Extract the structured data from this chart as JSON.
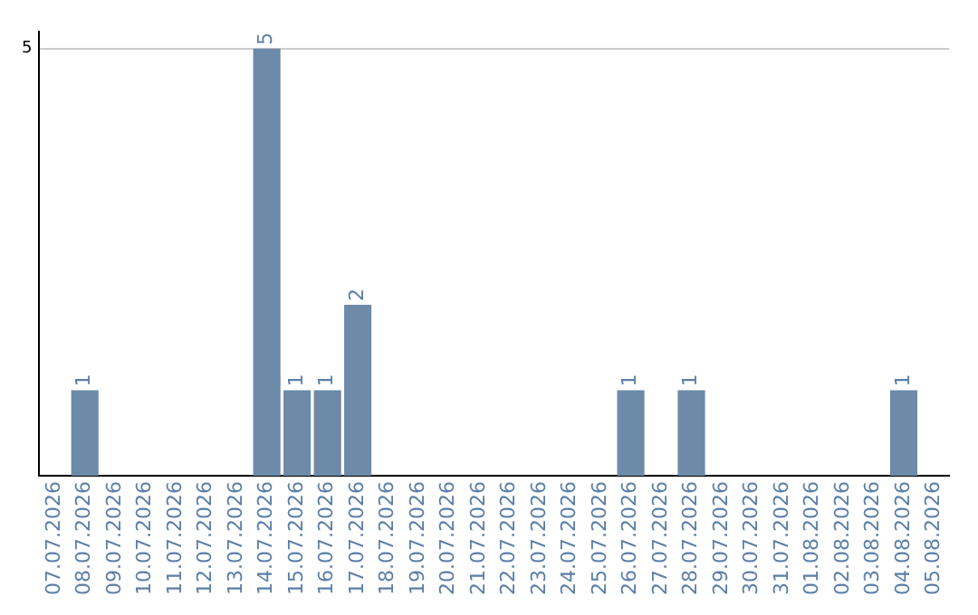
{
  "chart_data": {
    "type": "bar",
    "categories": [
      "07.07.2026",
      "08.07.2026",
      "09.07.2026",
      "10.07.2026",
      "11.07.2026",
      "12.07.2026",
      "13.07.2026",
      "14.07.2026",
      "15.07.2026",
      "16.07.2026",
      "17.07.2026",
      "18.07.2026",
      "19.07.2026",
      "20.07.2026",
      "21.07.2026",
      "22.07.2026",
      "23.07.2026",
      "24.07.2026",
      "25.07.2026",
      "26.07.2026",
      "27.07.2026",
      "28.07.2026",
      "29.07.2026",
      "30.07.2026",
      "31.07.2026",
      "01.08.2026",
      "02.08.2026",
      "03.08.2026",
      "04.08.2026",
      "05.08.2026"
    ],
    "values": [
      null,
      1,
      null,
      null,
      null,
      null,
      null,
      5,
      1,
      1,
      2,
      null,
      null,
      null,
      null,
      null,
      null,
      null,
      null,
      1,
      null,
      1,
      null,
      null,
      null,
      null,
      null,
      null,
      1,
      null
    ],
    "color": "#6d8aa8",
    "ylim": [
      0,
      5.2
    ],
    "yticks": [
      5
    ],
    "grid": "y",
    "legend": false,
    "data_labels": true
  }
}
